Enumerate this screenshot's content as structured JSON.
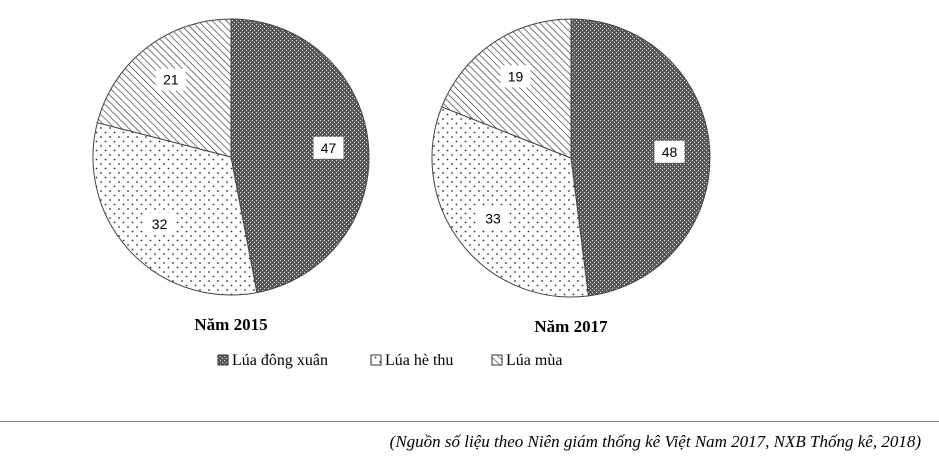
{
  "chart_data": {
    "type": "pie",
    "categories": [
      "Lúa đông xuân",
      "Lúa hè thu",
      "Lúa mùa"
    ],
    "fill_patterns": [
      "dense-cross-hatch",
      "sparse-dots",
      "diagonal-hatch"
    ],
    "charts": [
      {
        "title": "Năm 2015",
        "values": [
          47,
          32,
          21
        ]
      },
      {
        "title": "Năm 2017",
        "values": [
          48,
          33,
          19
        ]
      }
    ],
    "legend_position": "bottom"
  },
  "source_note": "(Nguồn số liệu theo Niên giám thống kê Việt Nam 2017, NXB Thống kê, 2018)"
}
